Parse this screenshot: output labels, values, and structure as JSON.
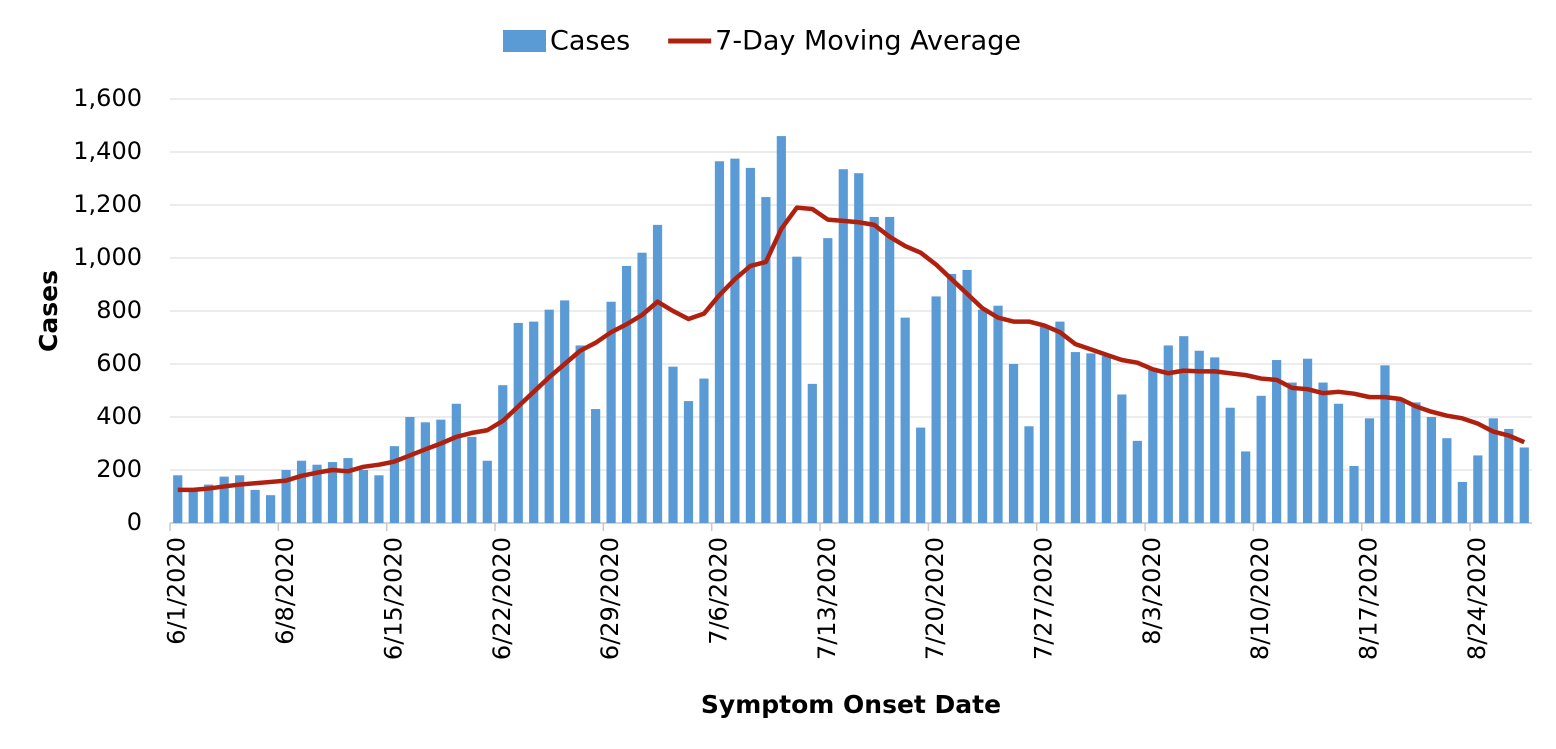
{
  "chart_data": {
    "type": "bar_line",
    "xlabel": "Symptom Onset Date",
    "ylabel": "Cases",
    "categories": [
      "6/1/2020",
      null,
      null,
      null,
      null,
      null,
      null,
      "6/8/2020",
      null,
      null,
      null,
      null,
      null,
      null,
      "6/15/2020",
      null,
      null,
      null,
      null,
      null,
      null,
      "6/22/2020",
      null,
      null,
      null,
      null,
      null,
      null,
      "6/29/2020",
      null,
      null,
      null,
      null,
      null,
      null,
      "7/6/2020",
      null,
      null,
      null,
      null,
      null,
      null,
      "7/13/2020",
      null,
      null,
      null,
      null,
      null,
      null,
      "7/20/2020",
      null,
      null,
      null,
      null,
      null,
      null,
      "7/27/2020",
      null,
      null,
      null,
      null,
      null,
      null,
      "8/3/2020",
      null,
      null,
      null,
      null,
      null,
      null,
      "8/10/2020",
      null,
      null,
      null,
      null,
      null,
      null,
      "8/17/2020",
      null,
      null,
      null,
      null,
      null,
      null,
      "8/24/2020",
      null,
      null,
      null
    ],
    "series": [
      {
        "name": "Cases",
        "kind": "bar",
        "color": "#5b9bd5",
        "values": [
          180,
          130,
          145,
          175,
          180,
          125,
          105,
          200,
          235,
          220,
          230,
          245,
          200,
          180,
          290,
          400,
          380,
          390,
          450,
          325,
          235,
          520,
          755,
          760,
          805,
          840,
          670,
          430,
          835,
          970,
          1020,
          1125,
          590,
          460,
          545,
          1365,
          1375,
          1340,
          1230,
          1460,
          1005,
          525,
          1075,
          1335,
          1320,
          1155,
          1155,
          775,
          360,
          855,
          940,
          955,
          805,
          820,
          600,
          365,
          740,
          760,
          645,
          640,
          630,
          485,
          310,
          580,
          670,
          705,
          650,
          625,
          435,
          270,
          480,
          615,
          530,
          620,
          530,
          450,
          215,
          395,
          595,
          470,
          455,
          400,
          320,
          155,
          255,
          395,
          355,
          285
        ]
      },
      {
        "name": "7-Day Moving Average",
        "kind": "line",
        "color": "#b0200f",
        "values": [
          125,
          125,
          130,
          138,
          145,
          150,
          155,
          160,
          178,
          190,
          200,
          195,
          212,
          220,
          232,
          255,
          278,
          300,
          325,
          340,
          350,
          385,
          440,
          495,
          550,
          600,
          650,
          680,
          720,
          750,
          785,
          835,
          800,
          770,
          790,
          860,
          920,
          970,
          985,
          1110,
          1190,
          1185,
          1145,
          1140,
          1135,
          1125,
          1080,
          1045,
          1020,
          975,
          920,
          865,
          810,
          775,
          760,
          760,
          745,
          720,
          675,
          655,
          635,
          615,
          605,
          580,
          565,
          575,
          572,
          572,
          565,
          558,
          545,
          540,
          510,
          505,
          490,
          495,
          488,
          475,
          475,
          468,
          440,
          420,
          405,
          395,
          375,
          345,
          330,
          305
        ]
      }
    ],
    "ylim": [
      0,
      1600
    ],
    "yticks": [
      0,
      200,
      400,
      600,
      800,
      {
        "value": 1000,
        "label": "1,000"
      },
      {
        "value": 1200,
        "label": "1,200"
      },
      {
        "value": 1400,
        "label": "1,400"
      },
      {
        "value": 1600,
        "label": "1,600"
      }
    ],
    "grid": true,
    "legend": "top"
  }
}
